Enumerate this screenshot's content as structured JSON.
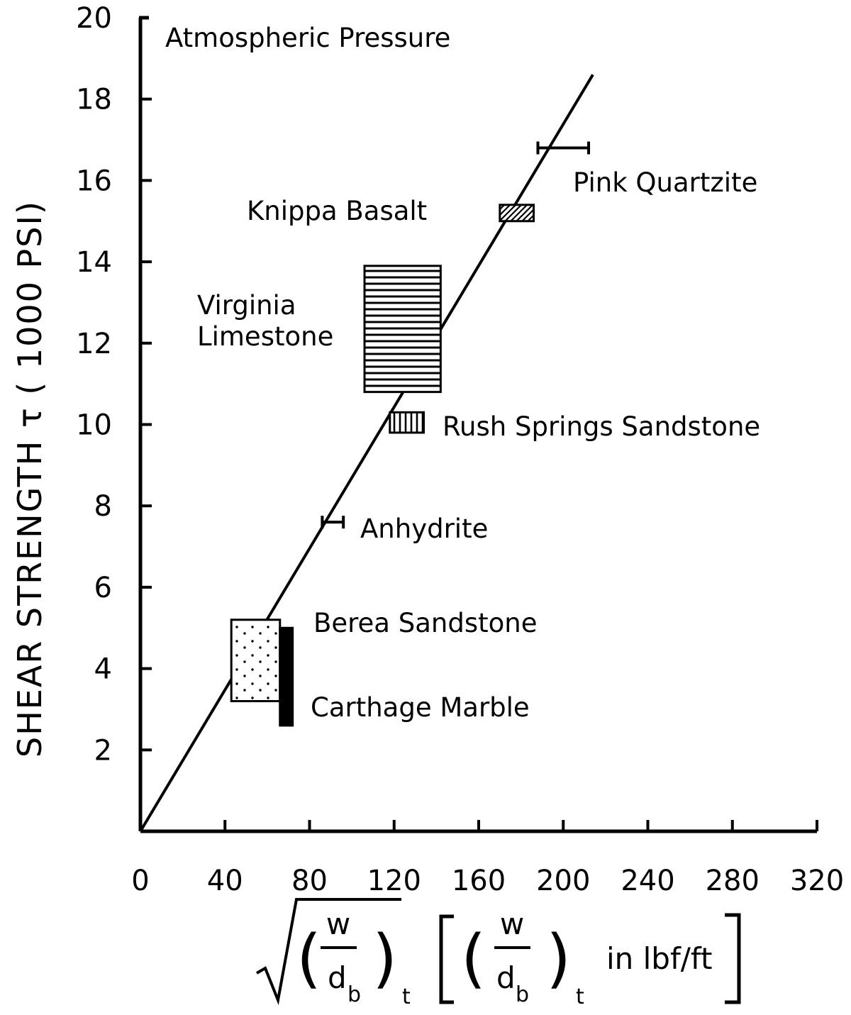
{
  "chart_data": {
    "type": "scatter",
    "title": "",
    "ylabel": "SHEAR STRENGTH τ ( 1000 PSI)",
    "xlabel": {
      "numerator": "w",
      "denominator_base": "d",
      "denominator_sub": "b",
      "outer_sub": "t",
      "units_text": "in lbf/ft"
    },
    "xlim": [
      0,
      320
    ],
    "ylim": [
      0,
      20
    ],
    "x_ticks": [
      0,
      40,
      80,
      120,
      160,
      200,
      240,
      280,
      320
    ],
    "y_ticks": [
      2,
      4,
      6,
      8,
      10,
      12,
      14,
      16,
      18,
      20
    ],
    "x_tick_labels": [
      "0",
      "40",
      "80",
      "120",
      "160",
      "200",
      "240",
      "280",
      "320"
    ],
    "y_tick_labels": [
      "2",
      "4",
      "6",
      "8",
      "10",
      "12",
      "14",
      "16",
      "18",
      "20"
    ],
    "top_annotation": "Atmospheric Pressure",
    "fit_line": {
      "x": [
        0,
        214
      ],
      "y": [
        0,
        18.6
      ]
    },
    "rocks": [
      {
        "name": "Pink Quartzite",
        "kind": "errorbar",
        "x": [
          188,
          212
        ],
        "y": 16.8
      },
      {
        "name": "Knippa Basalt",
        "kind": "box",
        "pattern": "diagonal",
        "x": [
          170,
          186
        ],
        "y": [
          15.0,
          15.4
        ]
      },
      {
        "name": "Virginia Limestone",
        "line1": "Virginia",
        "line2": "Limestone",
        "kind": "box",
        "pattern": "horizontal",
        "x": [
          106,
          142
        ],
        "y": [
          10.8,
          13.9
        ]
      },
      {
        "name": "Rush Springs Sandstone",
        "kind": "box",
        "pattern": "vertical",
        "x": [
          118,
          134
        ],
        "y": [
          9.8,
          10.3
        ]
      },
      {
        "name": "Anhydrite",
        "kind": "errorbar",
        "x": [
          86,
          96
        ],
        "y": 7.6
      },
      {
        "name": "Berea Sandstone",
        "kind": "box",
        "pattern": "dots",
        "x": [
          43,
          66
        ],
        "y": [
          3.2,
          5.2
        ]
      },
      {
        "name": "Carthage Marble",
        "kind": "box",
        "pattern": "solid",
        "x": [
          66,
          72
        ],
        "y": [
          2.6,
          5.0
        ]
      }
    ]
  }
}
